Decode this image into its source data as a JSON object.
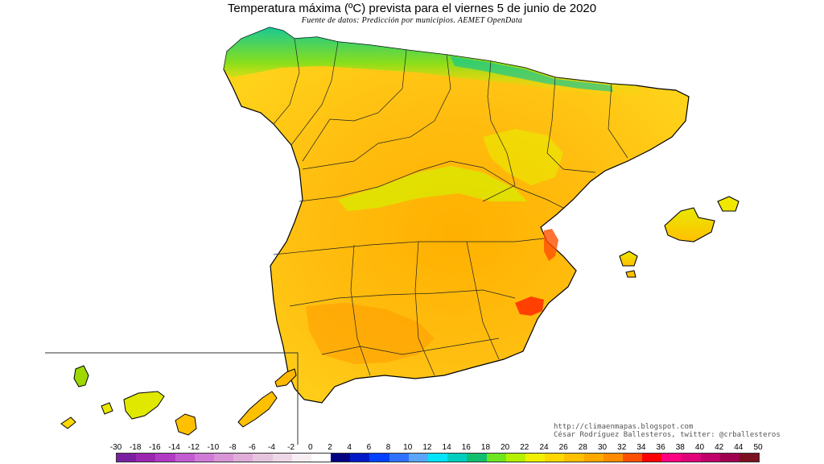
{
  "title": "Temperatura máxima (ºC) prevista para el viernes 5 de junio de 2020",
  "subtitle": "Fuente de datos: Predicción por municipios. AEMET OpenData",
  "credits": {
    "line1": "http://climaenmapas.blogspot.com",
    "line2": "César Rodríguez Ballesteros, twitter: @crballesteros"
  },
  "legend": {
    "labels": [
      "-30",
      "-18",
      "-16",
      "-14",
      "-12",
      "-10",
      "-8",
      "-6",
      "-4",
      "-2",
      "0",
      "2",
      "4",
      "6",
      "8",
      "10",
      "12",
      "14",
      "16",
      "18",
      "20",
      "22",
      "24",
      "26",
      "28",
      "30",
      "32",
      "34",
      "36",
      "38",
      "40",
      "42",
      "44",
      "50"
    ],
    "colors": [
      "#7b1fa2",
      "#9b27b0",
      "#b03ac4",
      "#c35bd0",
      "#cf7ad6",
      "#d994d8",
      "#e0acd9",
      "#e6c4de",
      "#eed7e6",
      "#f7eef3",
      "#ffffff",
      "#000080",
      "#0018c8",
      "#0040ff",
      "#2f72ff",
      "#5aa6ff",
      "#00e5ff",
      "#00cfc0",
      "#10c070",
      "#6ee61e",
      "#b4f000",
      "#f0f000",
      "#ffd800",
      "#ffc000",
      "#ffa800",
      "#ff8c00",
      "#ff5000",
      "#ff0000",
      "#ff0080",
      "#e0007a",
      "#c00068",
      "#a00050",
      "#7a1020"
    ]
  },
  "layers": {
    "canarias_inset_frame": "#333333",
    "coastline": "#000000",
    "province_borders": "#222222"
  }
}
